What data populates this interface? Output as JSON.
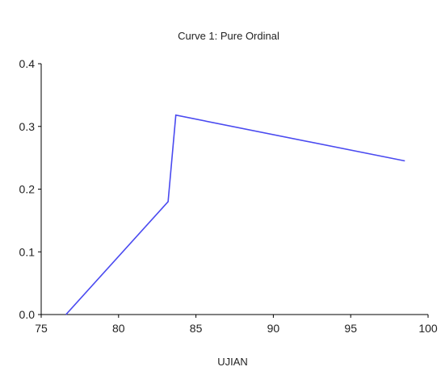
{
  "chart_data": {
    "type": "line",
    "title": "Curve 1: Pure Ordinal",
    "xlabel": "UJIAN",
    "ylabel": "",
    "xlim": [
      75,
      100
    ],
    "ylim": [
      0,
      0.4
    ],
    "x_ticks": [
      75,
      80,
      85,
      90,
      95,
      100
    ],
    "x_tick_labels": [
      "75",
      "80",
      "85",
      "90",
      "95",
      "100"
    ],
    "y_ticks": [
      0,
      0.1,
      0.2,
      0.3,
      0.4
    ],
    "y_tick_labels": [
      "0.0",
      "0.1",
      "0.2",
      "0.3",
      "0.4"
    ],
    "grid": false,
    "legend": "none",
    "series": [
      {
        "color": "#4a4af0",
        "points": [
          {
            "x": 76.6,
            "y": 0.0
          },
          {
            "x": 83.2,
            "y": 0.18
          },
          {
            "x": 83.7,
            "y": 0.318
          },
          {
            "x": 98.5,
            "y": 0.245
          }
        ]
      }
    ]
  }
}
